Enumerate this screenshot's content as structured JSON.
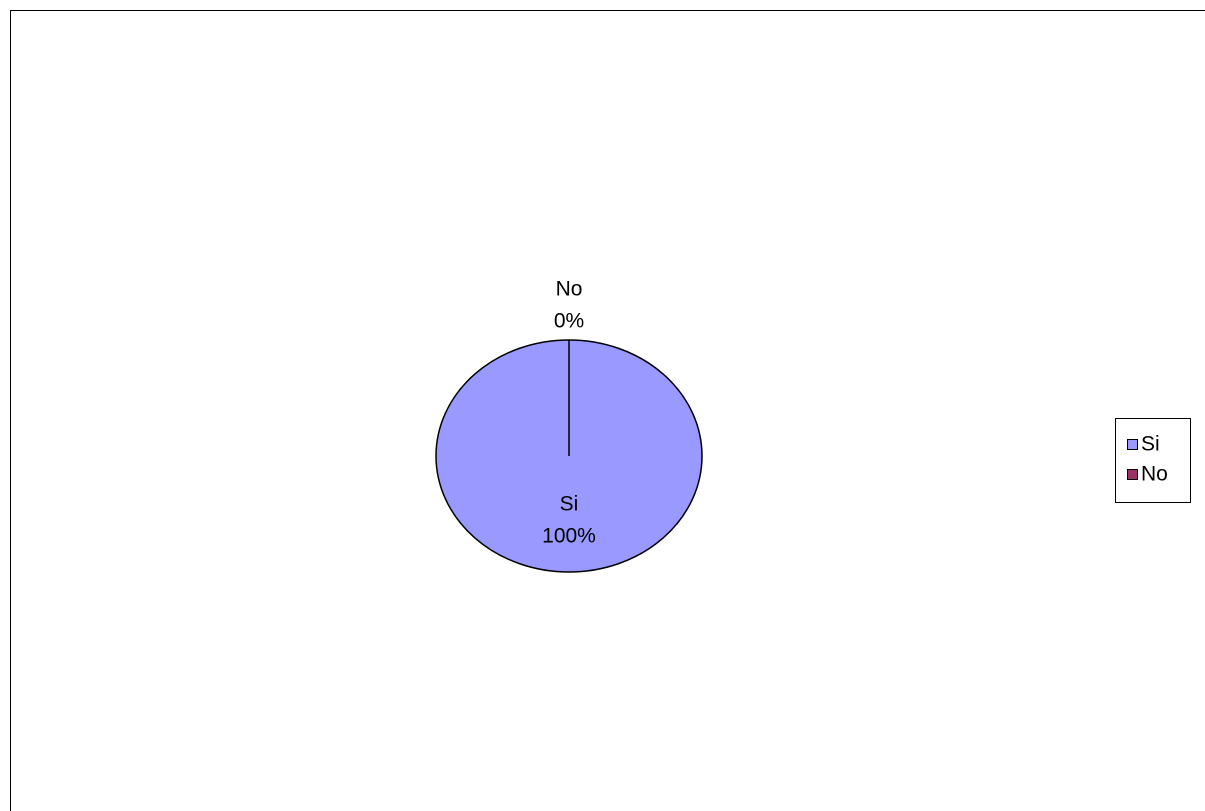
{
  "chart_data": {
    "type": "pie",
    "categories": [
      "Si",
      "No"
    ],
    "values": [
      100,
      0
    ],
    "value_labels": [
      "100%",
      "0%"
    ],
    "colors": [
      "#9999ff",
      "#993366"
    ],
    "legend": "right"
  }
}
